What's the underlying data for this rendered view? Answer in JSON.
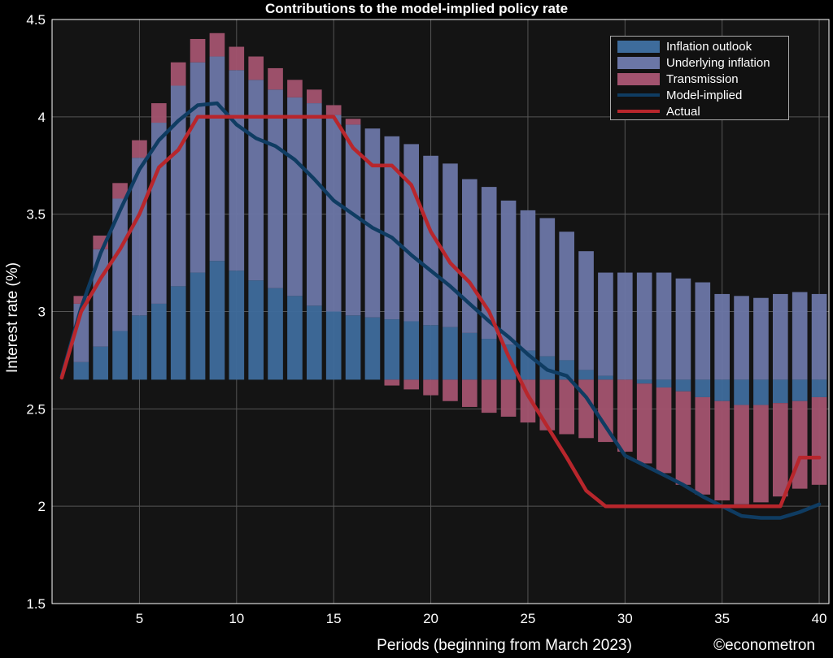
{
  "chart_data": {
    "type": "bar",
    "title": "Contributions to the model-implied policy rate",
    "xlabel": "Periods (beginning from March 2023)",
    "ylabel": "Interest rate (%)",
    "credit": "©econometron",
    "xlim": [
      0.5,
      40.5
    ],
    "ylim": [
      1.5,
      4.5
    ],
    "xticks": [
      5,
      10,
      15,
      20,
      25,
      30,
      35,
      40
    ],
    "yticks": [
      1.5,
      2,
      2.5,
      3,
      3.5,
      4,
      4.5
    ],
    "ytick_labels": [
      "1.5",
      "2",
      "2.5",
      "3",
      "3.5",
      "4",
      "4.5"
    ],
    "grid": true,
    "legend_position": "top-right",
    "baseline": 2.65,
    "x": [
      2,
      3,
      4,
      5,
      6,
      7,
      8,
      9,
      10,
      11,
      12,
      13,
      14,
      15,
      16,
      17,
      18,
      19,
      20,
      21,
      22,
      23,
      24,
      25,
      26,
      27,
      28,
      29,
      30,
      31,
      32,
      33,
      34,
      35,
      36,
      37,
      38,
      39,
      40
    ],
    "series": [
      {
        "name": "Inflation outlook",
        "kind": "stacked-bar",
        "color": "#3e6c9c",
        "values": [
          0.09,
          0.17,
          0.25,
          0.33,
          0.39,
          0.48,
          0.55,
          0.61,
          0.56,
          0.51,
          0.47,
          0.43,
          0.38,
          0.35,
          0.33,
          0.32,
          0.31,
          0.3,
          0.28,
          0.27,
          0.24,
          0.21,
          0.18,
          0.15,
          0.12,
          0.1,
          0.05,
          0.02,
          0.0,
          -0.02,
          -0.04,
          -0.06,
          -0.09,
          -0.11,
          -0.13,
          -0.13,
          -0.12,
          -0.11,
          -0.09
        ]
      },
      {
        "name": "Underlying inflation",
        "kind": "stacked-bar",
        "color": "#6b76a6",
        "values": [
          0.3,
          0.5,
          0.68,
          0.81,
          0.93,
          1.03,
          1.08,
          1.05,
          1.03,
          1.03,
          1.02,
          1.02,
          1.04,
          1.01,
          0.98,
          0.97,
          0.94,
          0.91,
          0.87,
          0.84,
          0.79,
          0.78,
          0.74,
          0.72,
          0.71,
          0.66,
          0.61,
          0.53,
          0.55,
          0.55,
          0.55,
          0.52,
          0.5,
          0.44,
          0.43,
          0.42,
          0.44,
          0.45,
          0.44
        ]
      },
      {
        "name": "Transmission",
        "kind": "stacked-bar",
        "color": "#a3536f",
        "values": [
          0.04,
          0.07,
          0.08,
          0.09,
          0.1,
          0.12,
          0.12,
          0.12,
          0.12,
          0.12,
          0.11,
          0.09,
          0.07,
          0.05,
          0.03,
          0.0,
          -0.03,
          -0.05,
          -0.08,
          -0.11,
          -0.14,
          -0.17,
          -0.19,
          -0.22,
          -0.26,
          -0.28,
          -0.3,
          -0.32,
          -0.37,
          -0.41,
          -0.44,
          -0.48,
          -0.5,
          -0.51,
          -0.51,
          -0.5,
          -0.48,
          -0.45,
          -0.45
        ]
      },
      {
        "name": "Model-implied",
        "kind": "line",
        "color": "#0f3c62",
        "x": [
          1,
          2,
          3,
          4,
          5,
          6,
          7,
          8,
          9,
          10,
          11,
          12,
          13,
          14,
          15,
          16,
          17,
          18,
          19,
          20,
          21,
          22,
          23,
          24,
          25,
          26,
          27,
          28,
          29,
          30,
          31,
          32,
          33,
          34,
          35,
          36,
          37,
          38,
          39,
          40
        ],
        "values": [
          2.67,
          3.02,
          3.3,
          3.52,
          3.73,
          3.88,
          3.98,
          4.06,
          4.07,
          3.96,
          3.89,
          3.85,
          3.78,
          3.68,
          3.57,
          3.5,
          3.43,
          3.38,
          3.29,
          3.21,
          3.13,
          3.04,
          2.95,
          2.87,
          2.78,
          2.7,
          2.67,
          2.56,
          2.41,
          2.26,
          2.21,
          2.16,
          2.11,
          2.05,
          2.0,
          1.95,
          1.94,
          1.94,
          1.97,
          2.01
        ]
      },
      {
        "name": "Actual",
        "kind": "line",
        "color": "#b8262c",
        "x": [
          1,
          2,
          3,
          4,
          5,
          6,
          7,
          8,
          9,
          10,
          11,
          12,
          13,
          14,
          15,
          16,
          17,
          18,
          19,
          20,
          21,
          22,
          23,
          24,
          25,
          26,
          27,
          28,
          29,
          30,
          31,
          32,
          33,
          34,
          35,
          36,
          37,
          38,
          39,
          40
        ],
        "values": [
          2.66,
          3.0,
          3.17,
          3.32,
          3.5,
          3.74,
          3.83,
          4.0,
          4.0,
          4.0,
          4.0,
          4.0,
          4.0,
          4.0,
          4.0,
          3.84,
          3.75,
          3.75,
          3.65,
          3.41,
          3.25,
          3.15,
          3.0,
          2.77,
          2.57,
          2.41,
          2.25,
          2.08,
          2.0,
          2.0,
          2.0,
          2.0,
          2.0,
          2.0,
          2.0,
          2.0,
          2.0,
          2.0,
          2.25,
          2.25
        ]
      }
    ]
  }
}
